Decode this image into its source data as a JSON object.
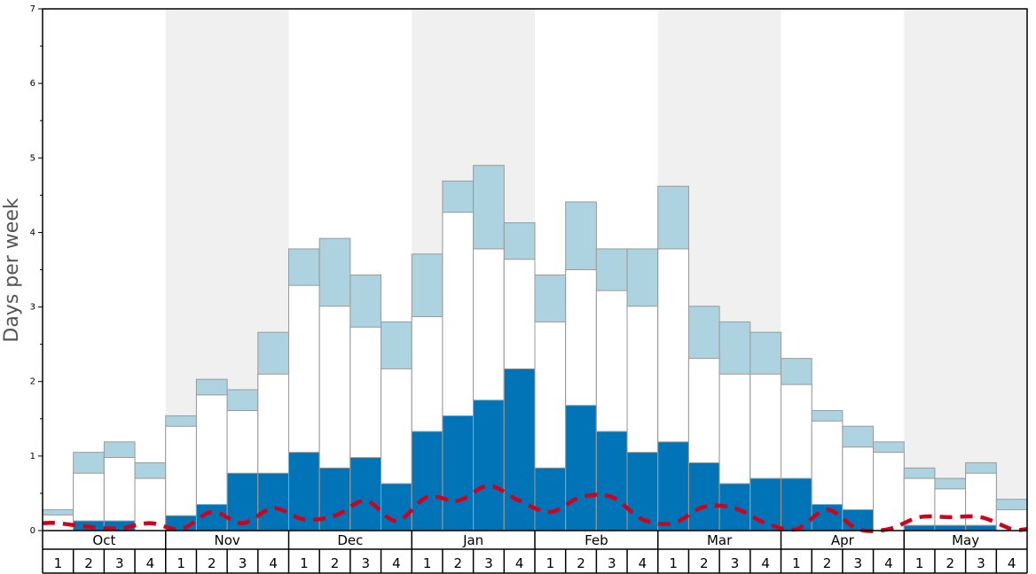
{
  "chart_data": {
    "type": "bar",
    "ylabel": "Days per week",
    "ylim": [
      0,
      7
    ],
    "yticks": [
      "0",
      "1",
      "2",
      "3",
      "4",
      "5",
      "6",
      "7"
    ],
    "months": [
      "Oct",
      "Nov",
      "Dec",
      "Jan",
      "Feb",
      "Mar",
      "Apr",
      "May"
    ],
    "weeks": [
      "1",
      "2",
      "3",
      "4"
    ],
    "colors": {
      "dark_blue": "#0074b7",
      "white": "#ffffff",
      "light_blue": "#add3e0",
      "dashed_line": "#d0021b",
      "shade": "#f0f0f0"
    },
    "series": [
      {
        "values": [
          0.0,
          0.13,
          0.13,
          0.0,
          0.2,
          0.35,
          0.77,
          0.77,
          1.05,
          0.84,
          0.98,
          0.63,
          1.33,
          1.54,
          1.75,
          2.17,
          0.84,
          1.68,
          1.33,
          1.05,
          1.19,
          0.91,
          0.63,
          0.7,
          0.7,
          0.35,
          0.28,
          0.0,
          0.07,
          0.07,
          0.07,
          0.0
        ]
      },
      {
        "values": [
          0.21,
          0.77,
          0.98,
          0.7,
          1.4,
          1.82,
          1.61,
          2.1,
          3.29,
          3.01,
          2.73,
          2.17,
          2.87,
          4.27,
          3.78,
          3.64,
          2.8,
          3.5,
          3.22,
          3.01,
          3.78,
          2.31,
          2.1,
          2.1,
          1.96,
          1.47,
          1.12,
          1.05,
          0.7,
          0.56,
          0.77,
          0.28
        ]
      },
      {
        "values": [
          0.28,
          1.05,
          1.19,
          0.91,
          1.54,
          2.03,
          1.89,
          2.66,
          3.78,
          3.92,
          3.43,
          2.8,
          3.71,
          4.69,
          4.9,
          4.13,
          3.43,
          4.41,
          3.78,
          3.78,
          4.62,
          3.01,
          2.8,
          2.66,
          2.31,
          1.61,
          1.4,
          1.19,
          0.84,
          0.7,
          0.91,
          0.42
        ]
      },
      {
        "values": [
          0.1,
          0.05,
          0.03,
          0.1,
          0.02,
          0.25,
          0.1,
          0.3,
          0.15,
          0.2,
          0.4,
          0.13,
          0.45,
          0.4,
          0.6,
          0.4,
          0.25,
          0.45,
          0.45,
          0.15,
          0.1,
          0.32,
          0.3,
          0.1,
          0.02,
          0.28,
          0.02,
          0.02,
          0.18,
          0.18,
          0.18,
          0.02
        ]
      }
    ]
  }
}
